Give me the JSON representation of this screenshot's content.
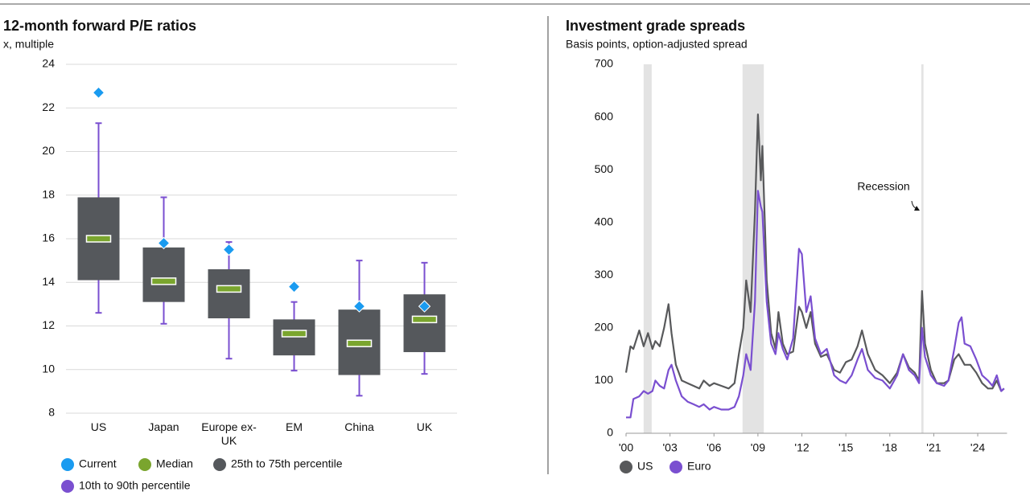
{
  "chart_data": [
    {
      "type": "box",
      "title": "12-month forward P/E ratios",
      "subtitle": "x, multiple",
      "categories": [
        "US",
        "Japan",
        "Europe ex-UK",
        "EM",
        "China",
        "UK"
      ],
      "ylim": [
        8,
        24
      ],
      "yticks": [
        8,
        10,
        12,
        14,
        16,
        18,
        20,
        22,
        24
      ],
      "grid": true,
      "series": [
        {
          "name": "Current",
          "color": "#1a9bf0",
          "values": [
            22.7,
            15.8,
            15.5,
            13.8,
            12.9,
            12.9
          ]
        },
        {
          "name": "Median",
          "color": "#7aa52e",
          "values": [
            16.0,
            14.05,
            13.7,
            11.65,
            11.2,
            12.3
          ]
        },
        {
          "name": "25th to 75th percentile",
          "color": "#55585c",
          "low": [
            14.1,
            13.1,
            12.35,
            10.65,
            9.75,
            10.8
          ],
          "high": [
            17.9,
            15.6,
            14.6,
            12.3,
            12.75,
            13.45
          ]
        },
        {
          "name": "10th to 90th percentile",
          "color": "#7a4fd0",
          "low": [
            12.6,
            12.1,
            10.5,
            9.95,
            8.8,
            9.8
          ],
          "high": [
            21.3,
            17.9,
            15.85,
            13.1,
            15.0,
            14.9
          ]
        }
      ]
    },
    {
      "type": "line",
      "title": "Investment grade spreads",
      "subtitle": "Basis points, option-adjusted spread",
      "annotation": "Recession",
      "recessions": [
        [
          2001.2,
          2001.75
        ],
        [
          2007.95,
          2009.4
        ],
        [
          2020.15,
          2020.3
        ]
      ],
      "xlim": [
        2000,
        2026
      ],
      "xticks": [
        {
          "value": 2000,
          "label": "'00"
        },
        {
          "value": 2003,
          "label": "'03"
        },
        {
          "value": 2006,
          "label": "'06"
        },
        {
          "value": 2009,
          "label": "'09"
        },
        {
          "value": 2012,
          "label": "'12"
        },
        {
          "value": 2015,
          "label": "'15"
        },
        {
          "value": 2018,
          "label": "'18"
        },
        {
          "value": 2021,
          "label": "'21"
        },
        {
          "value": 2024,
          "label": "'24"
        }
      ],
      "ylim": [
        0,
        700
      ],
      "yticks": [
        0,
        100,
        200,
        300,
        400,
        500,
        600,
        700
      ],
      "x": [
        2000.0,
        2000.3,
        2000.5,
        2000.9,
        2001.2,
        2001.5,
        2001.8,
        2002.0,
        2002.3,
        2002.6,
        2002.9,
        2003.1,
        2003.4,
        2003.8,
        2004.2,
        2004.6,
        2005.0,
        2005.3,
        2005.7,
        2006.0,
        2006.5,
        2007.0,
        2007.4,
        2007.7,
        2008.0,
        2008.2,
        2008.5,
        2008.8,
        2009.0,
        2009.2,
        2009.3,
        2009.6,
        2009.9,
        2010.2,
        2010.4,
        2010.7,
        2011.0,
        2011.4,
        2011.8,
        2012.0,
        2012.3,
        2012.6,
        2012.9,
        2013.3,
        2013.7,
        2014.2,
        2014.6,
        2015.0,
        2015.4,
        2015.8,
        2016.1,
        2016.5,
        2017.0,
        2017.5,
        2018.0,
        2018.5,
        2018.9,
        2019.3,
        2019.7,
        2020.0,
        2020.2,
        2020.4,
        2020.8,
        2021.2,
        2021.7,
        2022.0,
        2022.4,
        2022.7,
        2022.9,
        2023.1,
        2023.5,
        2023.9,
        2024.3,
        2024.7,
        2025.0,
        2025.3,
        2025.6,
        2025.8
      ],
      "series": [
        {
          "name": "US",
          "color": "#58595b",
          "values": [
            115,
            165,
            160,
            195,
            165,
            190,
            160,
            175,
            165,
            200,
            245,
            190,
            130,
            100,
            95,
            90,
            85,
            100,
            90,
            95,
            90,
            85,
            95,
            150,
            200,
            290,
            230,
            420,
            605,
            480,
            545,
            290,
            190,
            160,
            230,
            170,
            150,
            155,
            240,
            230,
            200,
            230,
            170,
            145,
            150,
            120,
            115,
            135,
            140,
            165,
            195,
            150,
            120,
            110,
            95,
            115,
            150,
            125,
            115,
            100,
            270,
            170,
            120,
            95,
            95,
            100,
            140,
            150,
            140,
            130,
            130,
            115,
            95,
            85,
            85,
            100,
            80,
            85
          ]
        },
        {
          "name": "Euro",
          "color": "#7a4fd0",
          "values": [
            30,
            30,
            65,
            70,
            80,
            75,
            80,
            100,
            90,
            85,
            120,
            130,
            100,
            70,
            60,
            55,
            50,
            55,
            45,
            50,
            45,
            45,
            50,
            70,
            110,
            150,
            120,
            250,
            460,
            430,
            420,
            250,
            170,
            150,
            190,
            160,
            140,
            180,
            350,
            340,
            230,
            260,
            180,
            150,
            160,
            110,
            100,
            95,
            110,
            140,
            160,
            120,
            105,
            100,
            85,
            110,
            150,
            120,
            110,
            95,
            200,
            145,
            110,
            95,
            90,
            100,
            160,
            210,
            220,
            170,
            165,
            140,
            110,
            100,
            90,
            110,
            80,
            85
          ]
        }
      ]
    }
  ]
}
